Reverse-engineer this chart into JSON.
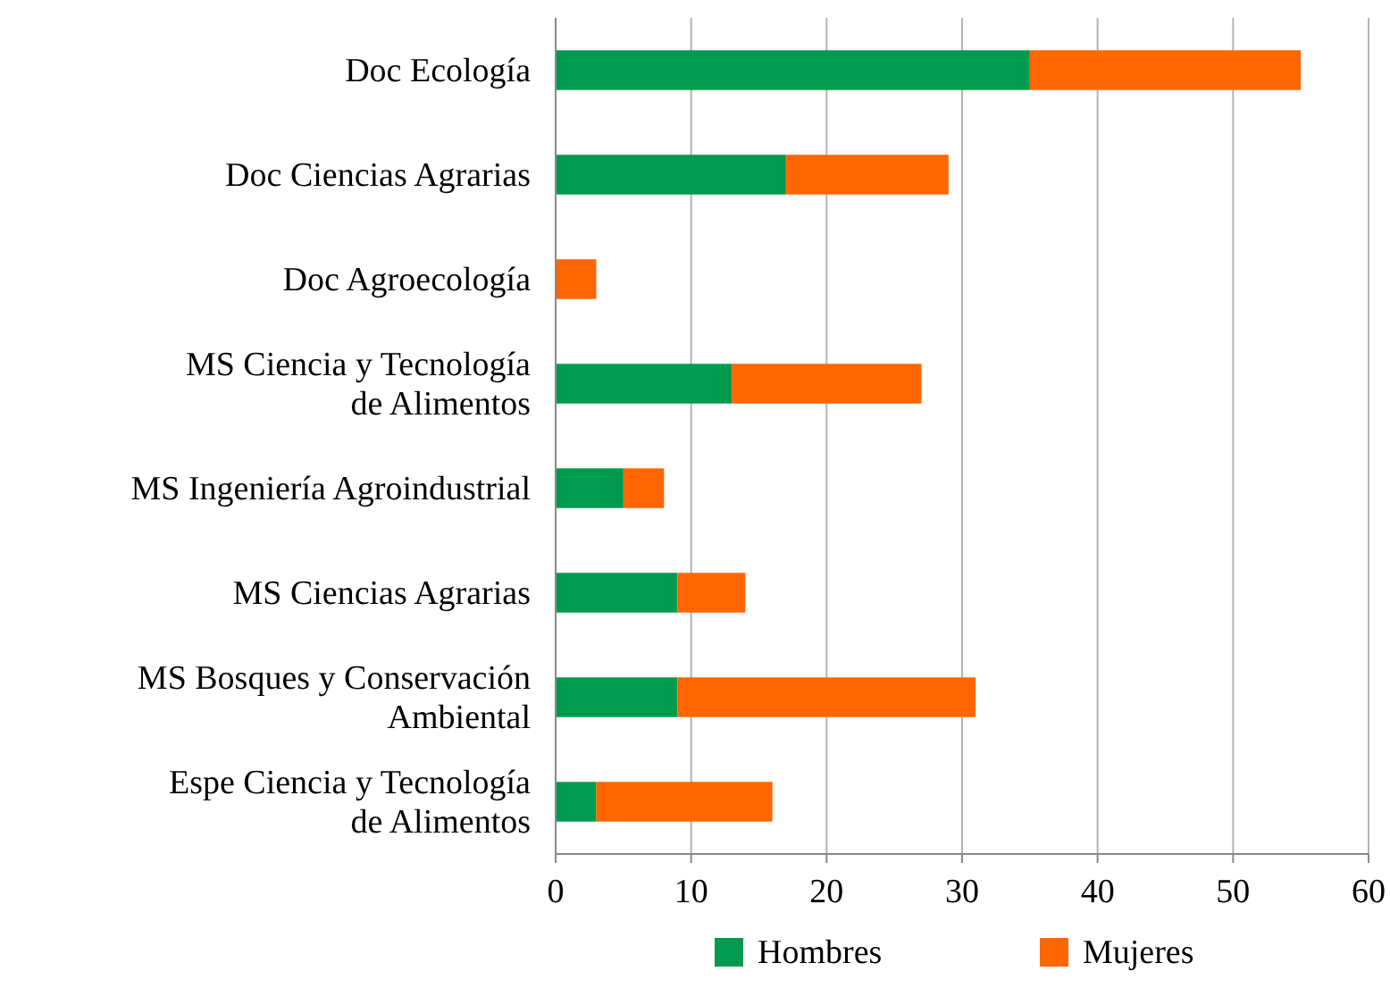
{
  "chart_data": {
    "type": "bar",
    "orientation": "horizontal",
    "stacked": true,
    "categories": [
      "Doc Ecología",
      "Doc Ciencias Agrarias",
      "Doc Agroecología",
      "MS Ciencia y Tecnología\nde Alimentos",
      "MS Ingeniería Agroindustrial",
      "MS Ciencias Agrarias",
      "MS Bosques y Conservación\nAmbiental",
      "Espe Ciencia y Tecnología\nde Alimentos"
    ],
    "series": [
      {
        "name": "Hombres",
        "color": "#009a4e",
        "values": [
          35,
          17,
          0,
          13,
          5,
          9,
          9,
          3
        ]
      },
      {
        "name": "Mujeres",
        "color": "#ff6600",
        "values": [
          20,
          12,
          3,
          14,
          3,
          5,
          22,
          13
        ]
      }
    ],
    "xlim": [
      0,
      60
    ],
    "xticks": [
      0,
      10,
      20,
      30,
      40,
      50,
      60
    ],
    "grid": "x",
    "legend": "bottom"
  }
}
